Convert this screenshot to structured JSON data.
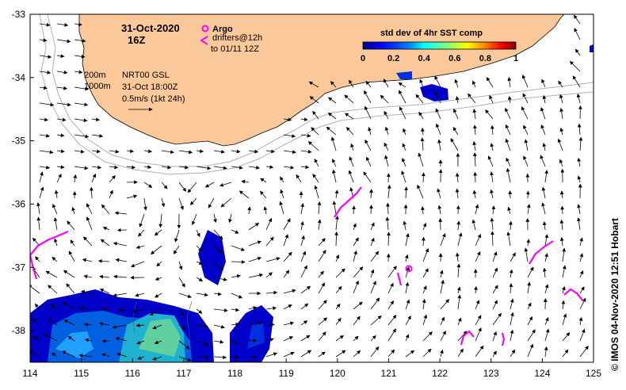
{
  "title": {
    "date": "31-Oct-2020",
    "time": "16Z"
  },
  "legend": {
    "argo_label": "Argo",
    "drifters_label_1": "drifters@12h",
    "drifters_label_2": "to 01/11 12Z",
    "argo_color": "#ff00ff",
    "drifter_color": "#ff00ff"
  },
  "annotations": {
    "iso200": "200m",
    "iso1000": "1000m",
    "product": "NRT00 GSL",
    "product_time": "31-Oct 18:00Z",
    "scale_arrow": "0.5m/s (1kt 24h)"
  },
  "colorbar": {
    "title": "std dev of 4hr SST comp",
    "ticks": [
      "0",
      "0.2",
      "0.4",
      "0.6",
      "0.8",
      "1"
    ],
    "colormap": [
      "#00007f",
      "#0000ff",
      "#007fff",
      "#00ffff",
      "#7fff7f",
      "#ffff00",
      "#ff7f00",
      "#ff0000",
      "#7f0000"
    ]
  },
  "axes": {
    "x_ticks": [
      "114",
      "115",
      "116",
      "117",
      "118",
      "119",
      "120",
      "121",
      "122",
      "123",
      "124",
      "125"
    ],
    "y_ticks": [
      "-33",
      "-34",
      "-35",
      "-36",
      "-37",
      "-38"
    ],
    "xlim": [
      114,
      125
    ],
    "ylim": [
      -38.5,
      -33
    ]
  },
  "credit": "© IMOS 04-Nov-2020 12:51 Hobart",
  "colors": {
    "land": "#fbc999",
    "ocean": "#ffffff",
    "contour": "#b0b0b0",
    "arrow": "#000000"
  },
  "map_data": {
    "region": "South-west Western Australia",
    "argo_floats": [
      {
        "lon": 121.42,
        "lat": -37.02
      }
    ],
    "drifters": [
      {
        "lon": 114.25,
        "lat": -37.0
      },
      {
        "lon": 119.95,
        "lat": -36.2
      },
      {
        "lon": 120.35,
        "lat": -35.9
      },
      {
        "lon": 121.25,
        "lat": -37.2
      },
      {
        "lon": 122.6,
        "lat": -38.1
      },
      {
        "lon": 123.25,
        "lat": -38.1
      },
      {
        "lon": 123.8,
        "lat": -36.8
      },
      {
        "lon": 124.6,
        "lat": -37.4
      }
    ]
  }
}
